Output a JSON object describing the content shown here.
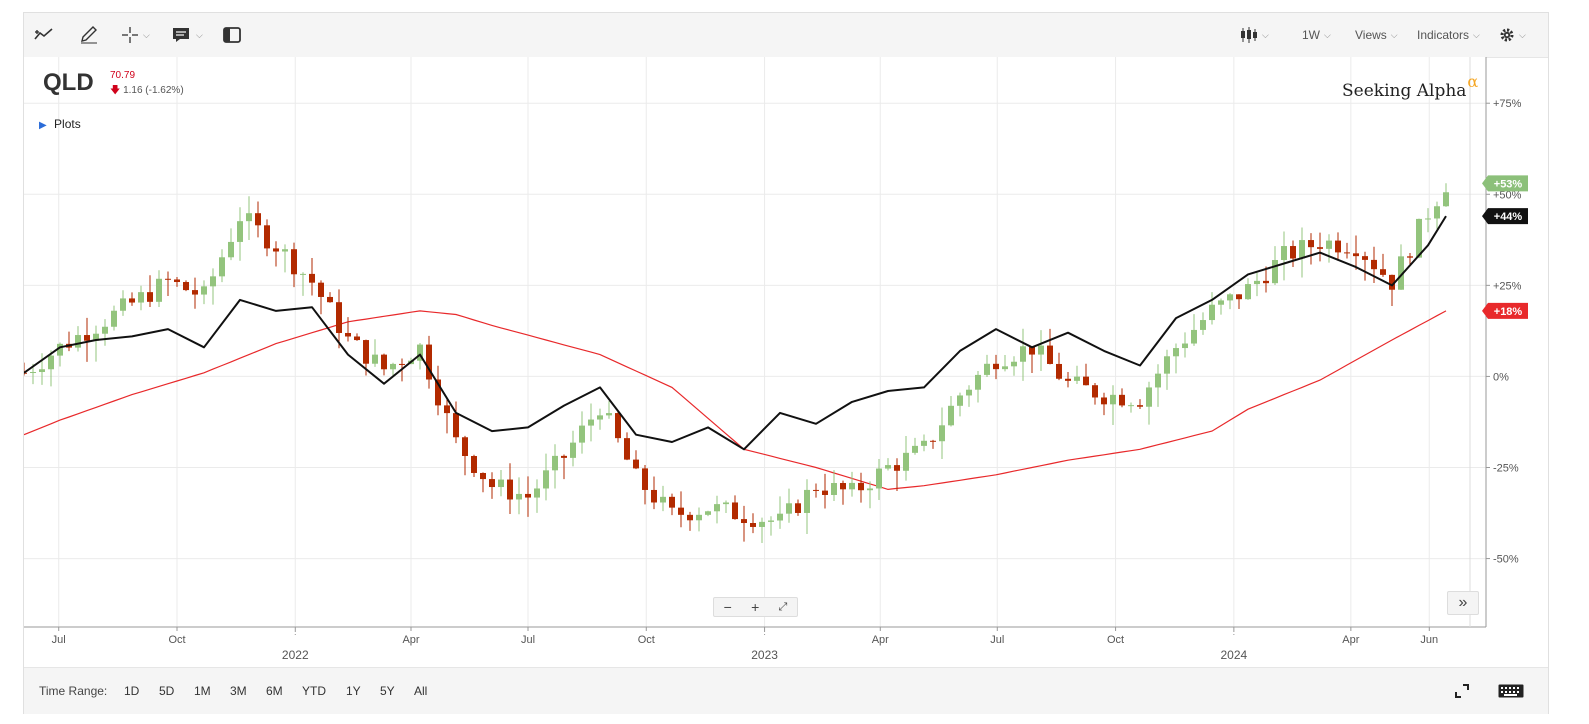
{
  "toolbar": {
    "left_icons": [
      "trend-line-icon",
      "pencil-icon",
      "crosshair-icon",
      "annotation-icon",
      "panel-icon"
    ],
    "interval_label": "1W",
    "views_label": "Views",
    "indicators_label": "Indicators"
  },
  "symbol": {
    "ticker": "QLD",
    "price": "70.79",
    "change": "1.16 (-1.62%)",
    "direction_icon": "down-arrow-icon",
    "down_color": "#d0021b"
  },
  "plots_label": "Plots",
  "brand": {
    "name": "Seeking Alpha",
    "mark": "α"
  },
  "time_range": {
    "label": "Time Range:",
    "options": [
      "1D",
      "5D",
      "1M",
      "3M",
      "6M",
      "YTD",
      "1Y",
      "5Y",
      "All"
    ]
  },
  "colors": {
    "up": "#93c47d",
    "down": "#b22a00",
    "line": "#111111",
    "ma": "#e8292b",
    "badge_up": "#8cc07a"
  },
  "chart_data": {
    "type": "line",
    "title": "",
    "y_axis": {
      "unit": "%",
      "ticks": [
        "+75%",
        "+50%",
        "+25%",
        "0%",
        "-25%",
        "-50%"
      ],
      "tick_values": [
        75,
        50,
        25,
        0,
        -25,
        -50
      ],
      "range": [
        -60,
        80
      ]
    },
    "x_axis": {
      "month_labels": [
        "Jul",
        "Oct",
        "2022",
        "Apr",
        "Jul",
        "Oct",
        "2023",
        "Apr",
        "Jul",
        "Oct",
        "2024",
        "Apr",
        "Jun"
      ],
      "year_labels": [
        "2022",
        "2023",
        "2024"
      ],
      "range": [
        "2021-06-04",
        "2024-06-14"
      ]
    },
    "badges": [
      {
        "label": "+53%",
        "value": 53,
        "color": "#8cc07a"
      },
      {
        "label": "+44%",
        "value": 44,
        "color": "#111111"
      },
      {
        "label": "+18%",
        "value": 18,
        "color": "#e8292b"
      }
    ],
    "series": [
      {
        "kind": "candlestick",
        "points": [
          [
            "2021-06-04",
            1
          ],
          [
            "2021-07-02",
            8
          ],
          [
            "2021-07-30",
            14
          ],
          [
            "2021-08-27",
            20
          ],
          [
            "2021-09-24",
            26
          ],
          [
            "2021-10-22",
            22
          ],
          [
            "2021-11-19",
            44
          ],
          [
            "2021-12-17",
            36
          ],
          [
            "2022-01-14",
            26
          ],
          [
            "2022-02-11",
            10
          ],
          [
            "2022-03-11",
            2
          ],
          [
            "2022-04-08",
            8
          ],
          [
            "2022-05-06",
            -18
          ],
          [
            "2022-06-03",
            -30
          ],
          [
            "2022-07-01",
            -33
          ],
          [
            "2022-07-29",
            -22
          ],
          [
            "2022-08-26",
            -8
          ],
          [
            "2022-09-23",
            -28
          ],
          [
            "2022-10-21",
            -38
          ],
          [
            "2022-11-18",
            -36
          ],
          [
            "2022-12-16",
            -38
          ],
          [
            "2023-01-13",
            -40
          ],
          [
            "2023-02-10",
            -30
          ],
          [
            "2023-03-10",
            -32
          ],
          [
            "2023-04-07",
            -25
          ],
          [
            "2023-05-05",
            -20
          ],
          [
            "2023-06-02",
            -5
          ],
          [
            "2023-06-30",
            5
          ],
          [
            "2023-07-28",
            8
          ],
          [
            "2023-08-25",
            -2
          ],
          [
            "2023-09-22",
            -5
          ],
          [
            "2023-10-20",
            -6
          ],
          [
            "2023-11-17",
            8
          ],
          [
            "2023-12-15",
            18
          ],
          [
            "2024-01-12",
            24
          ],
          [
            "2024-02-09",
            33
          ],
          [
            "2024-03-08",
            37
          ],
          [
            "2024-04-05",
            36
          ],
          [
            "2024-05-03",
            26
          ],
          [
            "2024-05-31",
            45
          ],
          [
            "2024-06-14",
            53
          ]
        ]
      },
      {
        "kind": "line",
        "points": [
          [
            "2021-06-04",
            1
          ],
          [
            "2021-07-02",
            8
          ],
          [
            "2021-07-30",
            10
          ],
          [
            "2021-08-27",
            11
          ],
          [
            "2021-09-24",
            13
          ],
          [
            "2021-10-22",
            8
          ],
          [
            "2021-11-19",
            21
          ],
          [
            "2021-12-17",
            18
          ],
          [
            "2022-01-14",
            19
          ],
          [
            "2022-02-11",
            6
          ],
          [
            "2022-03-11",
            -2
          ],
          [
            "2022-04-08",
            6
          ],
          [
            "2022-05-06",
            -10
          ],
          [
            "2022-06-03",
            -15
          ],
          [
            "2022-07-01",
            -14
          ],
          [
            "2022-07-29",
            -8
          ],
          [
            "2022-08-26",
            -3
          ],
          [
            "2022-09-23",
            -16
          ],
          [
            "2022-10-21",
            -18
          ],
          [
            "2022-11-18",
            -14
          ],
          [
            "2022-12-16",
            -20
          ],
          [
            "2023-01-13",
            -10
          ],
          [
            "2023-02-10",
            -13
          ],
          [
            "2023-03-10",
            -7
          ],
          [
            "2023-04-07",
            -4
          ],
          [
            "2023-05-05",
            -3
          ],
          [
            "2023-06-02",
            7
          ],
          [
            "2023-06-30",
            13
          ],
          [
            "2023-07-28",
            8
          ],
          [
            "2023-08-25",
            12
          ],
          [
            "2023-09-22",
            7
          ],
          [
            "2023-10-20",
            3
          ],
          [
            "2023-11-17",
            16
          ],
          [
            "2023-12-15",
            21
          ],
          [
            "2024-01-12",
            28
          ],
          [
            "2024-02-09",
            31
          ],
          [
            "2024-03-08",
            34
          ],
          [
            "2024-04-05",
            30
          ],
          [
            "2024-05-03",
            25
          ],
          [
            "2024-05-31",
            36
          ],
          [
            "2024-06-14",
            44
          ]
        ]
      },
      {
        "kind": "moving-average",
        "points": [
          [
            "2021-06-04",
            -16
          ],
          [
            "2021-07-02",
            -12
          ],
          [
            "2021-08-27",
            -5
          ],
          [
            "2021-10-22",
            1
          ],
          [
            "2021-12-17",
            9
          ],
          [
            "2022-02-11",
            15
          ],
          [
            "2022-04-08",
            18
          ],
          [
            "2022-05-06",
            17
          ],
          [
            "2022-06-03",
            14
          ],
          [
            "2022-08-26",
            6
          ],
          [
            "2022-10-21",
            -3
          ],
          [
            "2022-12-16",
            -20
          ],
          [
            "2023-02-10",
            -25
          ],
          [
            "2023-04-07",
            -31
          ],
          [
            "2023-05-05",
            -30
          ],
          [
            "2023-06-30",
            -27
          ],
          [
            "2023-08-25",
            -23
          ],
          [
            "2023-10-20",
            -20
          ],
          [
            "2023-12-15",
            -15
          ],
          [
            "2024-01-12",
            -9
          ],
          [
            "2024-03-08",
            -1
          ],
          [
            "2024-05-03",
            10
          ],
          [
            "2024-06-14",
            18
          ]
        ]
      }
    ]
  }
}
